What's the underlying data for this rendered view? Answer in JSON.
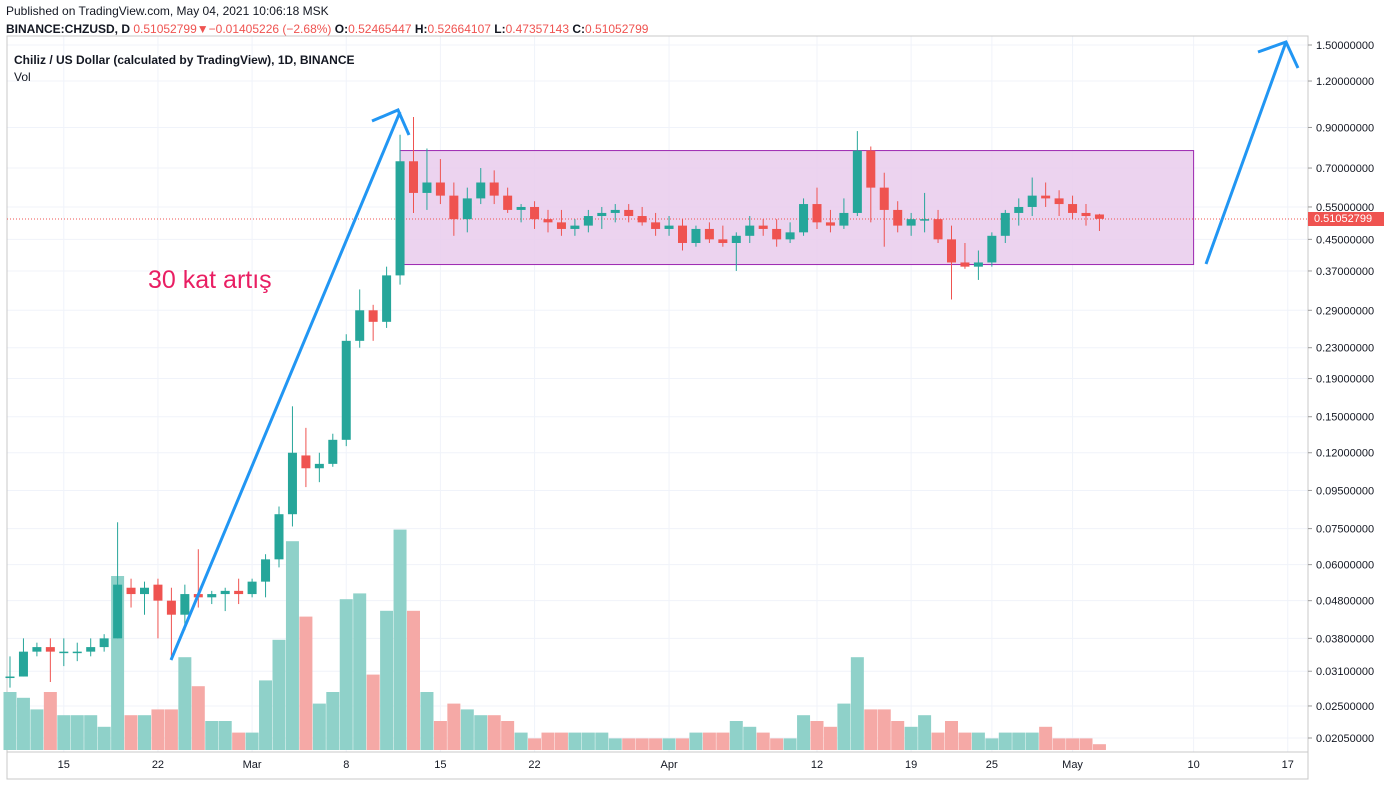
{
  "header": {
    "published": "Published on TradingView.com, May 04, 2021 10:06:18 MSK",
    "symbol": "BINANCE:CHZUSD, D",
    "last": "0.51052799",
    "change": "−0.01405226 (−2.68%)",
    "o_label": "O:",
    "o_value": "0.52465447",
    "h_label": "H:",
    "h_value": "0.52664107",
    "l_label": "L:",
    "l_value": "0.47357143",
    "c_label": "C:",
    "c_value": "0.51052799"
  },
  "chart_title": "Chiliz / US Dollar (calculated by TradingView), 1D, BINANCE",
  "vol_label": "Vol",
  "annotation": "30 kat artış",
  "price_tag": "0.51052799",
  "colors": {
    "up": "#26a69a",
    "down": "#ef5350",
    "vol_up": "#8fd1c9",
    "vol_down": "#f5a9a6",
    "box_fill": "#e9cbec",
    "box_stroke": "#9c27b0",
    "arrow": "#2196f3",
    "annotation": "#e91e63"
  },
  "chart_data": {
    "type": "candlestick",
    "y_scale": "log",
    "y_ticks": [
      "1.50000000",
      "1.20000000",
      "0.90000000",
      "0.70000000",
      "0.55000000",
      "0.45000000",
      "0.37000000",
      "0.29000000",
      "0.23000000",
      "0.19000000",
      "0.15000000",
      "0.12000000",
      "0.09500000",
      "0.07500000",
      "0.06000000",
      "0.04800000",
      "0.03800000",
      "0.03100000",
      "0.02500000",
      "0.02050000"
    ],
    "x_ticks": [
      {
        "label": "15",
        "i": 4
      },
      {
        "label": "22",
        "i": 11
      },
      {
        "label": "Mar",
        "i": 18
      },
      {
        "label": "8",
        "i": 25
      },
      {
        "label": "15",
        "i": 32
      },
      {
        "label": "22",
        "i": 39
      },
      {
        "label": "Apr",
        "i": 49
      },
      {
        "label": "12",
        "i": 60
      },
      {
        "label": "19",
        "i": 67
      },
      {
        "label": "25",
        "i": 73
      },
      {
        "label": "May",
        "i": 79
      },
      {
        "label": "10",
        "i": 88
      },
      {
        "label": "17",
        "i": 95
      }
    ],
    "candles": [
      [
        0.03,
        0.034,
        0.028,
        0.03,
        1.0
      ],
      [
        0.03,
        0.038,
        0.03,
        0.035,
        0.9
      ],
      [
        0.035,
        0.037,
        0.034,
        0.036,
        0.7
      ],
      [
        0.036,
        0.038,
        0.029,
        0.035,
        1.0
      ],
      [
        0.035,
        0.038,
        0.032,
        0.035,
        0.6
      ],
      [
        0.035,
        0.037,
        0.033,
        0.035,
        0.6
      ],
      [
        0.035,
        0.038,
        0.034,
        0.036,
        0.6
      ],
      [
        0.036,
        0.039,
        0.035,
        0.038,
        0.4
      ],
      [
        0.038,
        0.078,
        0.038,
        0.053,
        3.0
      ],
      [
        0.052,
        0.055,
        0.046,
        0.05,
        0.6
      ],
      [
        0.05,
        0.054,
        0.044,
        0.052,
        0.6
      ],
      [
        0.053,
        0.055,
        0.038,
        0.048,
        0.7
      ],
      [
        0.048,
        0.052,
        0.034,
        0.044,
        0.7
      ],
      [
        0.044,
        0.053,
        0.04,
        0.05,
        1.6
      ],
      [
        0.05,
        0.066,
        0.046,
        0.049,
        1.1
      ],
      [
        0.049,
        0.051,
        0.047,
        0.05,
        0.5
      ],
      [
        0.05,
        0.052,
        0.045,
        0.051,
        0.5
      ],
      [
        0.051,
        0.055,
        0.047,
        0.05,
        0.3
      ],
      [
        0.05,
        0.055,
        0.049,
        0.054,
        0.3
      ],
      [
        0.054,
        0.064,
        0.049,
        0.062,
        1.2
      ],
      [
        0.062,
        0.086,
        0.059,
        0.082,
        1.9
      ],
      [
        0.082,
        0.16,
        0.076,
        0.12,
        3.6
      ],
      [
        0.118,
        0.14,
        0.097,
        0.109,
        2.3
      ],
      [
        0.109,
        0.12,
        0.1,
        0.112,
        0.8
      ],
      [
        0.112,
        0.135,
        0.11,
        0.13,
        1.0
      ],
      [
        0.13,
        0.25,
        0.125,
        0.24,
        2.6
      ],
      [
        0.24,
        0.33,
        0.23,
        0.29,
        2.7
      ],
      [
        0.29,
        0.3,
        0.24,
        0.27,
        1.3
      ],
      [
        0.27,
        0.38,
        0.26,
        0.36,
        2.4
      ],
      [
        0.36,
        0.86,
        0.34,
        0.73,
        3.8
      ],
      [
        0.73,
        0.96,
        0.53,
        0.6,
        2.4
      ],
      [
        0.6,
        0.79,
        0.54,
        0.64,
        1.0
      ],
      [
        0.64,
        0.74,
        0.56,
        0.59,
        0.5
      ],
      [
        0.59,
        0.64,
        0.46,
        0.51,
        0.8
      ],
      [
        0.51,
        0.62,
        0.47,
        0.58,
        0.7
      ],
      [
        0.58,
        0.7,
        0.56,
        0.64,
        0.6
      ],
      [
        0.64,
        0.69,
        0.56,
        0.59,
        0.6
      ],
      [
        0.59,
        0.62,
        0.53,
        0.54,
        0.5
      ],
      [
        0.54,
        0.56,
        0.5,
        0.55,
        0.3
      ],
      [
        0.55,
        0.57,
        0.48,
        0.51,
        0.2
      ],
      [
        0.51,
        0.54,
        0.47,
        0.5,
        0.3
      ],
      [
        0.5,
        0.54,
        0.46,
        0.48,
        0.3
      ],
      [
        0.48,
        0.51,
        0.46,
        0.49,
        0.3
      ],
      [
        0.49,
        0.54,
        0.47,
        0.52,
        0.3
      ],
      [
        0.52,
        0.55,
        0.48,
        0.53,
        0.3
      ],
      [
        0.53,
        0.56,
        0.5,
        0.54,
        0.2
      ],
      [
        0.54,
        0.56,
        0.5,
        0.52,
        0.2
      ],
      [
        0.52,
        0.55,
        0.49,
        0.5,
        0.2
      ],
      [
        0.5,
        0.53,
        0.46,
        0.48,
        0.2
      ],
      [
        0.48,
        0.52,
        0.46,
        0.49,
        0.2
      ],
      [
        0.49,
        0.51,
        0.42,
        0.44,
        0.2
      ],
      [
        0.44,
        0.49,
        0.43,
        0.48,
        0.3
      ],
      [
        0.48,
        0.5,
        0.44,
        0.45,
        0.3
      ],
      [
        0.45,
        0.49,
        0.43,
        0.44,
        0.3
      ],
      [
        0.44,
        0.47,
        0.37,
        0.46,
        0.5
      ],
      [
        0.46,
        0.52,
        0.44,
        0.49,
        0.4
      ],
      [
        0.49,
        0.51,
        0.46,
        0.48,
        0.3
      ],
      [
        0.48,
        0.51,
        0.43,
        0.45,
        0.2
      ],
      [
        0.45,
        0.5,
        0.44,
        0.47,
        0.2
      ],
      [
        0.47,
        0.58,
        0.46,
        0.56,
        0.6
      ],
      [
        0.56,
        0.62,
        0.48,
        0.5,
        0.5
      ],
      [
        0.5,
        0.54,
        0.47,
        0.49,
        0.4
      ],
      [
        0.49,
        0.58,
        0.48,
        0.53,
        0.8
      ],
      [
        0.53,
        0.88,
        0.52,
        0.78,
        1.6
      ],
      [
        0.78,
        0.8,
        0.5,
        0.62,
        0.7
      ],
      [
        0.62,
        0.68,
        0.43,
        0.54,
        0.7
      ],
      [
        0.54,
        0.57,
        0.47,
        0.49,
        0.5
      ],
      [
        0.49,
        0.53,
        0.46,
        0.51,
        0.4
      ],
      [
        0.51,
        0.6,
        0.47,
        0.51,
        0.6
      ],
      [
        0.51,
        0.54,
        0.44,
        0.45,
        0.3
      ],
      [
        0.45,
        0.49,
        0.31,
        0.39,
        0.5
      ],
      [
        0.39,
        0.44,
        0.375,
        0.38,
        0.3
      ],
      [
        0.38,
        0.42,
        0.35,
        0.39,
        0.3
      ],
      [
        0.39,
        0.47,
        0.38,
        0.46,
        0.2
      ],
      [
        0.46,
        0.54,
        0.44,
        0.53,
        0.3
      ],
      [
        0.53,
        0.58,
        0.49,
        0.55,
        0.3
      ],
      [
        0.55,
        0.66,
        0.52,
        0.59,
        0.3
      ],
      [
        0.59,
        0.64,
        0.55,
        0.58,
        0.4
      ],
      [
        0.58,
        0.61,
        0.52,
        0.56,
        0.2
      ],
      [
        0.56,
        0.59,
        0.51,
        0.53,
        0.2
      ],
      [
        0.53,
        0.56,
        0.49,
        0.52,
        0.2
      ],
      [
        0.525,
        0.527,
        0.474,
        0.511,
        0.1
      ]
    ]
  }
}
